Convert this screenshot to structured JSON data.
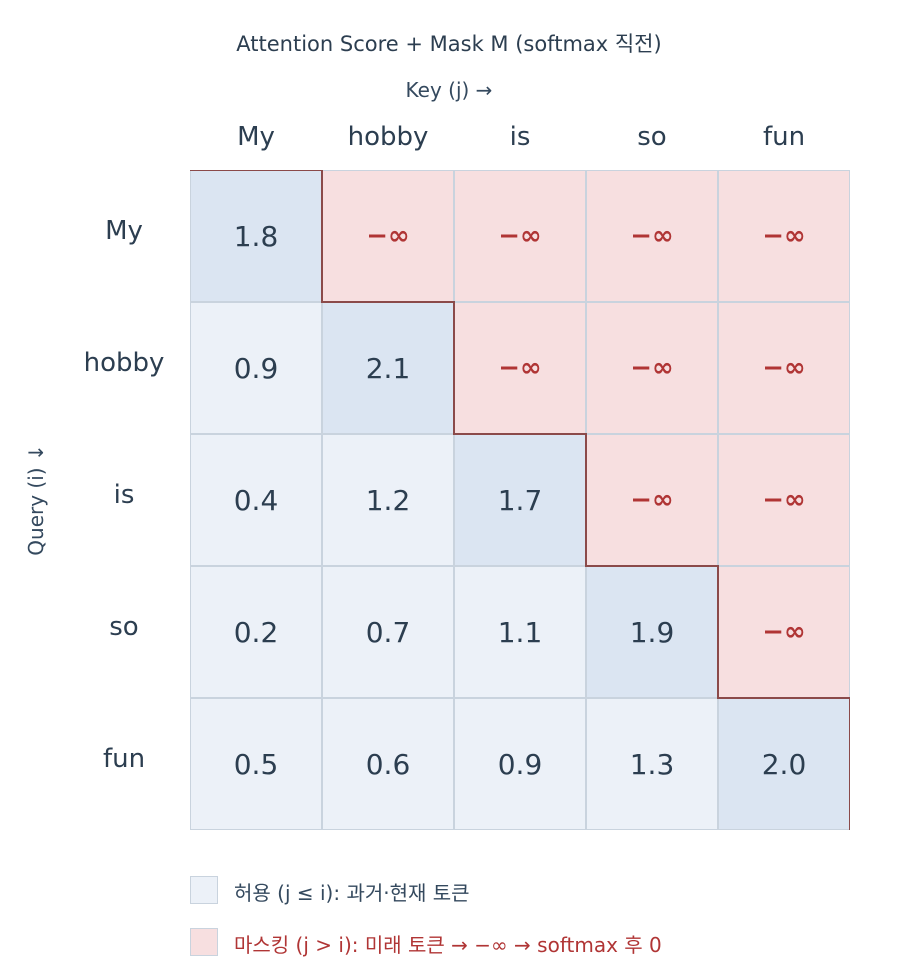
{
  "title": "Attention Score  +  Mask M   (softmax 직전)",
  "key_axis_label": "Key (j) →",
  "query_axis_label": "Query (i) ↓",
  "tokens": [
    "My",
    "hobby",
    "is",
    "so",
    "fun"
  ],
  "mask_symbol": "−∞",
  "matrix": [
    [
      "1.8",
      "−∞",
      "−∞",
      "−∞",
      "−∞"
    ],
    [
      "0.9",
      "2.1",
      "−∞",
      "−∞",
      "−∞"
    ],
    [
      "0.4",
      "1.2",
      "1.7",
      "−∞",
      "−∞"
    ],
    [
      "0.2",
      "0.7",
      "1.1",
      "1.9",
      "−∞"
    ],
    [
      "0.5",
      "0.6",
      "0.9",
      "1.3",
      "2.0"
    ]
  ],
  "legend": {
    "allowed": "허용 (j ≤ i): 과거·현재 토큰",
    "masked": "마스킹 (j > i): 미래 토큰 → −∞ → softmax 후 0"
  },
  "colors": {
    "allowed_fill": "#ecf1f8",
    "diagonal_fill": "#dbe5f2",
    "masked_fill": "#f7dfe0",
    "masked_text": "#b03535",
    "mask_boundary": "#8b4a4a"
  }
}
